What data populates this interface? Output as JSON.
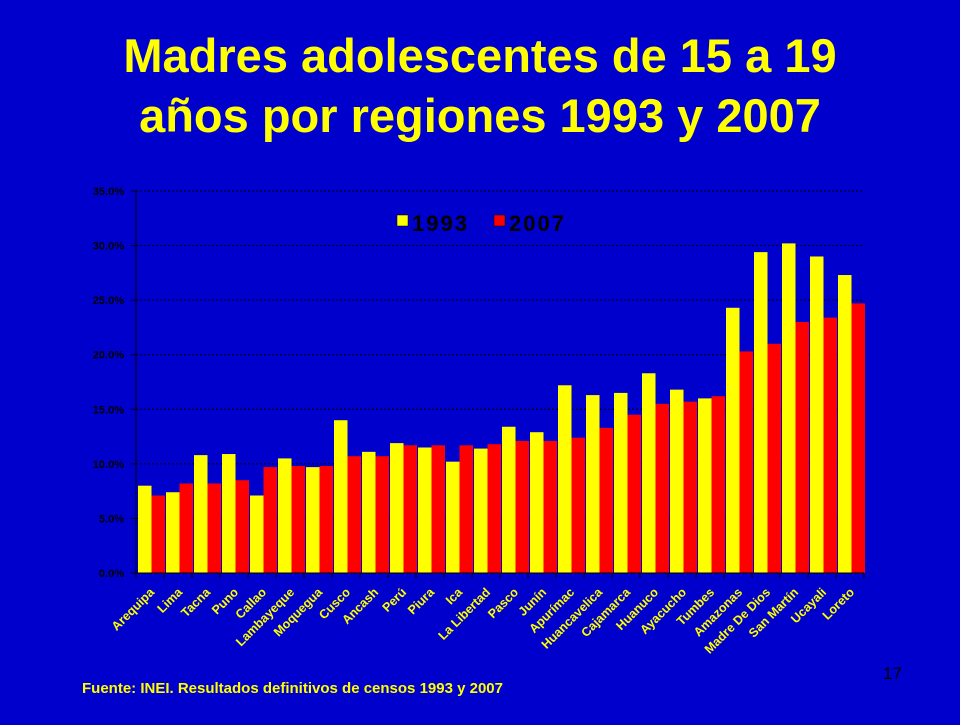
{
  "slide": {
    "title_line1": "Madres adolescentes de 15 a 19",
    "title_line2": "años por regiones 1993 y 2007",
    "source": "Fuente: INEI. Resultados definitivos de censos 1993 y 2007",
    "page_number": "17"
  },
  "colors": {
    "background": "#0000cc",
    "text": "#ffff00",
    "series_1993": "#ffff00",
    "series_2007": "#ff0000"
  },
  "chart_data": {
    "type": "bar",
    "title": "",
    "xlabel": "",
    "ylabel": "",
    "ylim": [
      0,
      0.35
    ],
    "yticks": [
      "0.0%",
      "5.0%",
      "10.0%",
      "15.0%",
      "20.0%",
      "25.0%",
      "30.0%",
      "35.0%"
    ],
    "grid": true,
    "legend_position": "top-center",
    "categories": [
      "Arequipa",
      "Lima",
      "Tacna",
      "Puno",
      "Callao",
      "Lambayeque",
      "Moquegua",
      "Cusco",
      "Ancash",
      "Perú",
      "Piura",
      "Ica",
      "La Libertad",
      "Pasco",
      "Junín",
      "Apurímac",
      "Huancavelica",
      "Cajamarca",
      "Huanuco",
      "Ayacucho",
      "Tumbes",
      "Amazonas",
      "Madre De Dios",
      "San Martín",
      "Ucayali",
      "Loreto"
    ],
    "series": [
      {
        "name": "1993",
        "color": "#ffff00",
        "values": [
          0.08,
          0.074,
          0.108,
          0.109,
          0.071,
          0.105,
          0.097,
          0.14,
          0.111,
          0.119,
          0.115,
          0.102,
          0.114,
          0.134,
          0.129,
          0.172,
          0.163,
          0.165,
          0.183,
          0.168,
          0.16,
          0.243,
          0.294,
          0.302,
          0.29,
          0.273
        ]
      },
      {
        "name": "2007",
        "color": "#ff0000",
        "values": [
          0.071,
          0.082,
          0.082,
          0.085,
          0.097,
          0.098,
          0.098,
          0.107,
          0.107,
          0.117,
          0.117,
          0.117,
          0.118,
          0.121,
          0.121,
          0.124,
          0.133,
          0.145,
          0.155,
          0.157,
          0.162,
          0.203,
          0.21,
          0.23,
          0.234,
          0.247
        ]
      }
    ]
  }
}
